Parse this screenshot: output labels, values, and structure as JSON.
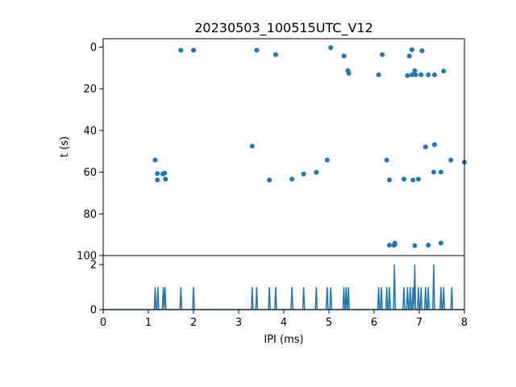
{
  "chart_data": [
    {
      "type": "scatter",
      "title": "20230503_100515UTC_V12",
      "xlabel": "",
      "ylabel": "t (s)",
      "xlim": [
        0,
        8
      ],
      "ylim": [
        100,
        -4
      ],
      "y_inverted": true,
      "y_ticks": [
        "0",
        "20",
        "40",
        "60",
        "80",
        "100"
      ],
      "grid": false,
      "color": "#1f77b4",
      "points": [
        {
          "x": 1.72,
          "y": 1.5
        },
        {
          "x": 2.0,
          "y": 1.5
        },
        {
          "x": 3.4,
          "y": 1.5
        },
        {
          "x": 3.82,
          "y": 3.6
        },
        {
          "x": 5.04,
          "y": 0.3
        },
        {
          "x": 5.33,
          "y": 4.3
        },
        {
          "x": 5.42,
          "y": 11.3
        },
        {
          "x": 5.44,
          "y": 12.6
        },
        {
          "x": 6.1,
          "y": 13.3
        },
        {
          "x": 6.18,
          "y": 3.6
        },
        {
          "x": 6.74,
          "y": 13.7
        },
        {
          "x": 6.78,
          "y": 4.3
        },
        {
          "x": 6.84,
          "y": 1.3
        },
        {
          "x": 6.84,
          "y": 13.3
        },
        {
          "x": 6.9,
          "y": 11.3
        },
        {
          "x": 6.92,
          "y": 13.3
        },
        {
          "x": 7.04,
          "y": 13.3
        },
        {
          "x": 7.06,
          "y": 1.8
        },
        {
          "x": 7.2,
          "y": 13.3
        },
        {
          "x": 7.34,
          "y": 13.3
        },
        {
          "x": 7.54,
          "y": 11.5
        },
        {
          "x": 1.15,
          "y": 54.2
        },
        {
          "x": 1.2,
          "y": 60.7
        },
        {
          "x": 1.2,
          "y": 63.7
        },
        {
          "x": 1.32,
          "y": 60.9
        },
        {
          "x": 1.36,
          "y": 60.5
        },
        {
          "x": 1.38,
          "y": 63.3
        },
        {
          "x": 3.3,
          "y": 47.5
        },
        {
          "x": 3.68,
          "y": 63.8
        },
        {
          "x": 4.18,
          "y": 63.3
        },
        {
          "x": 4.44,
          "y": 60.9
        },
        {
          "x": 4.72,
          "y": 60.1
        },
        {
          "x": 4.96,
          "y": 54.2
        },
        {
          "x": 6.28,
          "y": 54.2
        },
        {
          "x": 6.34,
          "y": 63.7
        },
        {
          "x": 6.66,
          "y": 63.3
        },
        {
          "x": 6.86,
          "y": 63.8
        },
        {
          "x": 6.98,
          "y": 63.3
        },
        {
          "x": 7.14,
          "y": 47.9
        },
        {
          "x": 7.32,
          "y": 60.0
        },
        {
          "x": 7.34,
          "y": 46.8
        },
        {
          "x": 7.48,
          "y": 60.0
        },
        {
          "x": 7.7,
          "y": 54.2
        },
        {
          "x": 8.0,
          "y": 55.2
        },
        {
          "x": 6.34,
          "y": 95.0
        },
        {
          "x": 6.44,
          "y": 95.0
        },
        {
          "x": 6.46,
          "y": 94.0
        },
        {
          "x": 6.46,
          "y": 94.7
        },
        {
          "x": 6.9,
          "y": 95.2
        },
        {
          "x": 7.2,
          "y": 95.0
        },
        {
          "x": 7.48,
          "y": 94.0
        }
      ]
    },
    {
      "type": "line",
      "title": "",
      "xlabel": "IPI (ms)",
      "ylabel": "",
      "xlim": [
        0,
        8
      ],
      "ylim": [
        0,
        2.4
      ],
      "x_ticks": [
        "0",
        "1",
        "2",
        "3",
        "4",
        "5",
        "6",
        "7",
        "8"
      ],
      "y_ticks": [
        "0",
        "2"
      ],
      "grid": false,
      "color": "#1f77b4",
      "spikes": [
        {
          "x": 1.15,
          "y": 1
        },
        {
          "x": 1.21,
          "y": 1
        },
        {
          "x": 1.33,
          "y": 1
        },
        {
          "x": 1.37,
          "y": 1
        },
        {
          "x": 1.72,
          "y": 1
        },
        {
          "x": 2.0,
          "y": 1
        },
        {
          "x": 3.3,
          "y": 1
        },
        {
          "x": 3.4,
          "y": 1
        },
        {
          "x": 3.68,
          "y": 1
        },
        {
          "x": 3.82,
          "y": 1
        },
        {
          "x": 4.18,
          "y": 1
        },
        {
          "x": 4.44,
          "y": 1
        },
        {
          "x": 4.72,
          "y": 1
        },
        {
          "x": 4.96,
          "y": 1
        },
        {
          "x": 5.04,
          "y": 1
        },
        {
          "x": 5.33,
          "y": 1
        },
        {
          "x": 5.38,
          "y": 1
        },
        {
          "x": 5.43,
          "y": 1
        },
        {
          "x": 6.1,
          "y": 1
        },
        {
          "x": 6.16,
          "y": 1
        },
        {
          "x": 6.28,
          "y": 1
        },
        {
          "x": 6.34,
          "y": 1
        },
        {
          "x": 6.45,
          "y": 2
        },
        {
          "x": 6.66,
          "y": 1
        },
        {
          "x": 6.74,
          "y": 1
        },
        {
          "x": 6.8,
          "y": 1
        },
        {
          "x": 6.86,
          "y": 1
        },
        {
          "x": 6.9,
          "y": 2
        },
        {
          "x": 6.98,
          "y": 1
        },
        {
          "x": 7.04,
          "y": 1
        },
        {
          "x": 7.14,
          "y": 1
        },
        {
          "x": 7.2,
          "y": 1
        },
        {
          "x": 7.32,
          "y": 2
        },
        {
          "x": 7.48,
          "y": 1
        },
        {
          "x": 7.54,
          "y": 1
        },
        {
          "x": 7.72,
          "y": 1
        }
      ]
    }
  ]
}
